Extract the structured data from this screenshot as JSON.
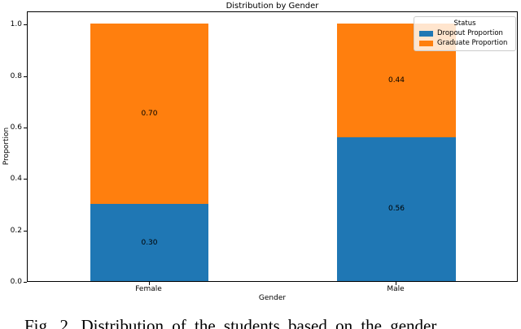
{
  "title": "Distribution by Gender",
  "axes": {
    "xlabel": "Gender",
    "ylabel": "Proportion",
    "xticks": [
      "Female",
      "Male"
    ],
    "yticks": [
      "0.0",
      "0.2",
      "0.4",
      "0.6",
      "0.8",
      "1.0"
    ]
  },
  "legend": {
    "title": "Status",
    "entries": [
      {
        "label": "Dropout Proportion",
        "color": "#1f77b4"
      },
      {
        "label": "Graduate Proportion",
        "color": "#ff7f0e"
      }
    ]
  },
  "caption": "Fig. 2. Distribution of the students based on the gender",
  "colors": {
    "dropout": "#1f77b4",
    "graduate": "#ff7f0e",
    "spine": "#000000",
    "legend_border": "#cccccc"
  },
  "chart_data": {
    "type": "bar",
    "stacked": true,
    "title": "Distribution by Gender",
    "xlabel": "Gender",
    "ylabel": "Proportion",
    "categories": [
      "Female",
      "Male"
    ],
    "series": [
      {
        "name": "Dropout Proportion",
        "color": "#1f77b4",
        "values": [
          0.3,
          0.56
        ],
        "labels": [
          "0.30",
          "0.56"
        ]
      },
      {
        "name": "Graduate Proportion",
        "color": "#ff7f0e",
        "values": [
          0.7,
          0.44
        ],
        "labels": [
          "0.70",
          "0.44"
        ]
      }
    ],
    "ylim": [
      0,
      1.05
    ],
    "yticks": [
      0.0,
      0.2,
      0.4,
      0.6,
      0.8,
      1.0
    ],
    "grid": false,
    "legend_title": "Status",
    "legend_position": "upper right",
    "bar_value_labels_shown": true
  }
}
